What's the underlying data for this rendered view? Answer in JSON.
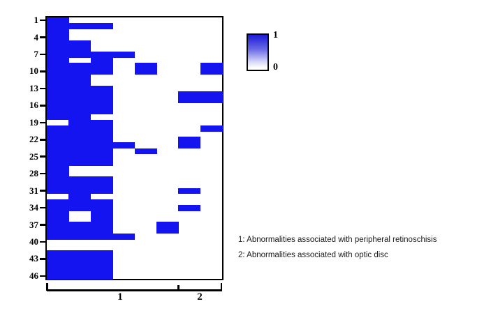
{
  "figure": {
    "colorbar": {
      "max_label": "1",
      "min_label": "0"
    },
    "notes": [
      "1: Abnormalities associated with peripheral retinoschisis",
      "2: Abnormalities associated with optic disc"
    ]
  },
  "chart_data": {
    "type": "heatmap",
    "title": "",
    "xlabel": "",
    "ylabel": "",
    "rows": 46,
    "cols": 8,
    "value_range": [
      0,
      1
    ],
    "legend": {
      "top_value": "1",
      "bottom_value": "0"
    },
    "colors": {
      "on": "#1414f0",
      "off": "#ffffff"
    },
    "y_tick_labels": [
      1,
      4,
      7,
      10,
      13,
      16,
      19,
      22,
      25,
      28,
      31,
      34,
      37,
      40,
      43,
      46
    ],
    "x_groups": [
      {
        "label": "1",
        "col_start": 1,
        "col_end": 6,
        "description": "Abnormalities associated with peripheral retinoschisis"
      },
      {
        "label": "2",
        "col_start": 7,
        "col_end": 8,
        "description": "Abnormalities associated with optic disc"
      }
    ],
    "values_by_row": [
      [
        1,
        0,
        0,
        0,
        0,
        0,
        0,
        0
      ],
      [
        1,
        1,
        1,
        0,
        0,
        0,
        0,
        0
      ],
      [
        1,
        0,
        0,
        0,
        0,
        0,
        0,
        0
      ],
      [
        1,
        0,
        0,
        0,
        0,
        0,
        0,
        0
      ],
      [
        1,
        1,
        0,
        0,
        0,
        0,
        0,
        0
      ],
      [
        1,
        1,
        0,
        0,
        0,
        0,
        0,
        0
      ],
      [
        1,
        1,
        1,
        1,
        0,
        0,
        0,
        0
      ],
      [
        1,
        0,
        1,
        0,
        0,
        0,
        0,
        0
      ],
      [
        1,
        1,
        1,
        0,
        1,
        0,
        0,
        1
      ],
      [
        1,
        1,
        1,
        0,
        1,
        0,
        0,
        1
      ],
      [
        1,
        1,
        0,
        0,
        0,
        0,
        0,
        0
      ],
      [
        1,
        1,
        0,
        0,
        0,
        0,
        0,
        0
      ],
      [
        1,
        1,
        1,
        0,
        0,
        0,
        0,
        0
      ],
      [
        1,
        1,
        1,
        0,
        0,
        0,
        1,
        1
      ],
      [
        1,
        1,
        1,
        0,
        0,
        0,
        1,
        1
      ],
      [
        1,
        1,
        1,
        0,
        0,
        0,
        0,
        0
      ],
      [
        1,
        1,
        1,
        0,
        0,
        0,
        0,
        0
      ],
      [
        1,
        1,
        0,
        0,
        0,
        0,
        0,
        0
      ],
      [
        0,
        1,
        1,
        0,
        0,
        0,
        0,
        0
      ],
      [
        1,
        1,
        1,
        0,
        0,
        0,
        0,
        1
      ],
      [
        1,
        1,
        1,
        0,
        0,
        0,
        0,
        0
      ],
      [
        1,
        1,
        1,
        0,
        0,
        0,
        1,
        0
      ],
      [
        1,
        1,
        1,
        1,
        0,
        0,
        1,
        0
      ],
      [
        1,
        1,
        1,
        0,
        1,
        0,
        0,
        0
      ],
      [
        1,
        1,
        1,
        0,
        0,
        0,
        0,
        0
      ],
      [
        1,
        1,
        1,
        0,
        0,
        0,
        0,
        0
      ],
      [
        1,
        0,
        0,
        0,
        0,
        0,
        0,
        0
      ],
      [
        1,
        0,
        0,
        0,
        0,
        0,
        0,
        0
      ],
      [
        1,
        1,
        1,
        0,
        0,
        0,
        0,
        0
      ],
      [
        1,
        1,
        1,
        0,
        0,
        0,
        0,
        0
      ],
      [
        1,
        1,
        1,
        0,
        0,
        0,
        1,
        0
      ],
      [
        0,
        1,
        0,
        0,
        0,
        0,
        0,
        0
      ],
      [
        1,
        1,
        1,
        0,
        0,
        0,
        0,
        0
      ],
      [
        1,
        1,
        1,
        0,
        0,
        0,
        1,
        0
      ],
      [
        1,
        0,
        1,
        0,
        0,
        0,
        0,
        0
      ],
      [
        1,
        0,
        1,
        0,
        0,
        0,
        0,
        0
      ],
      [
        1,
        1,
        1,
        0,
        0,
        1,
        0,
        0
      ],
      [
        1,
        1,
        1,
        0,
        0,
        1,
        0,
        0
      ],
      [
        1,
        1,
        1,
        1,
        0,
        0,
        0,
        0
      ],
      [
        0,
        0,
        0,
        0,
        0,
        0,
        0,
        0
      ],
      [
        0,
        0,
        0,
        0,
        0,
        0,
        0,
        0
      ],
      [
        1,
        1,
        1,
        0,
        0,
        0,
        0,
        0
      ],
      [
        1,
        1,
        1,
        0,
        0,
        0,
        0,
        0
      ],
      [
        1,
        1,
        1,
        0,
        0,
        0,
        0,
        0
      ],
      [
        1,
        1,
        1,
        0,
        0,
        0,
        0,
        0
      ],
      [
        1,
        1,
        1,
        0,
        0,
        0,
        0,
        0
      ]
    ]
  }
}
